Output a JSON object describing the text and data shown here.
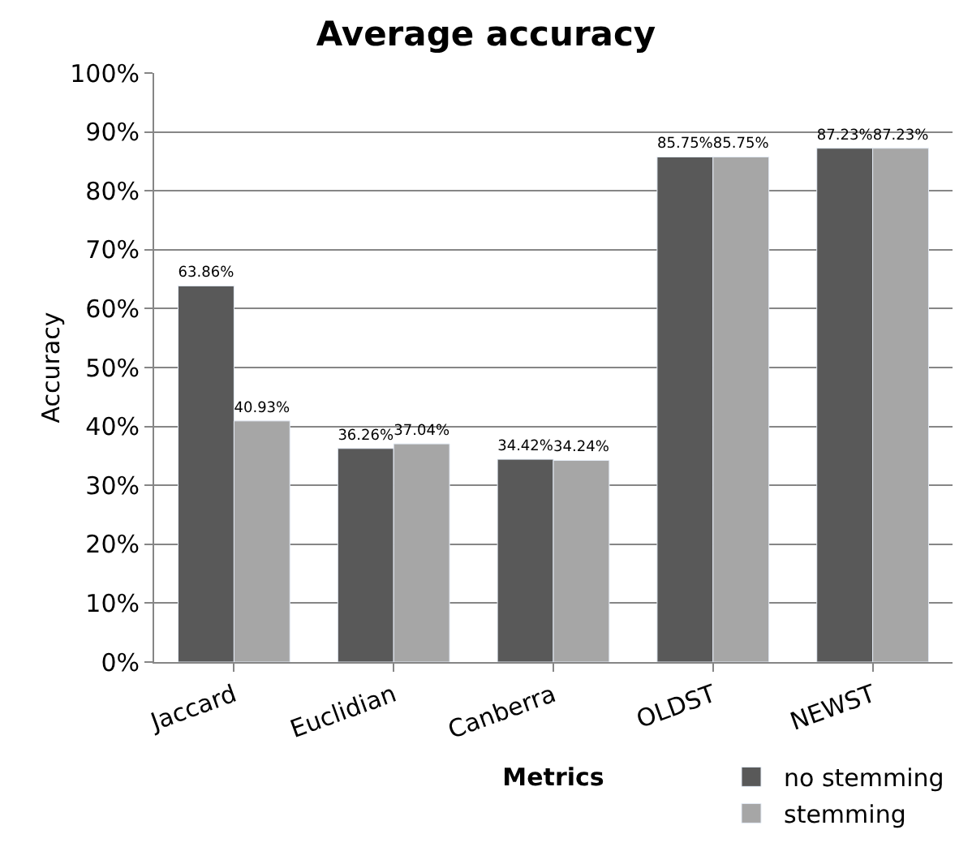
{
  "chart_data": {
    "type": "bar",
    "title": "Average accuracy",
    "xlabel": "Metrics",
    "ylabel": "Accuracy",
    "categories": [
      "Jaccard",
      "Euclidian",
      "Canberra",
      "OLDST",
      "NEWST"
    ],
    "series": [
      {
        "name": "no stemming",
        "color": "#595959",
        "values": [
          63.86,
          36.26,
          34.42,
          85.75,
          87.23
        ],
        "value_labels": [
          "63.86%",
          "36.26%",
          "34.42%",
          "85.75%",
          "87.23%"
        ]
      },
      {
        "name": "stemming",
        "color": "#a6a6a6",
        "values": [
          40.93,
          37.04,
          34.24,
          85.75,
          87.23
        ],
        "value_labels": [
          "40.93%",
          "37.04%",
          "34.24%",
          "85.75%",
          "87.23%"
        ]
      }
    ],
    "ylim": [
      0,
      100
    ],
    "yticks": [
      {
        "value": 0,
        "label": "0%"
      },
      {
        "value": 10,
        "label": "10%"
      },
      {
        "value": 20,
        "label": "20%"
      },
      {
        "value": 30,
        "label": "30%"
      },
      {
        "value": 40,
        "label": "40%"
      },
      {
        "value": 50,
        "label": "50%"
      },
      {
        "value": 60,
        "label": "60%"
      },
      {
        "value": 70,
        "label": "70%"
      },
      {
        "value": 80,
        "label": "80%"
      },
      {
        "value": 90,
        "label": "90%"
      },
      {
        "value": 100,
        "label": "100%"
      }
    ],
    "grid": "y",
    "legend": "bottom right"
  }
}
